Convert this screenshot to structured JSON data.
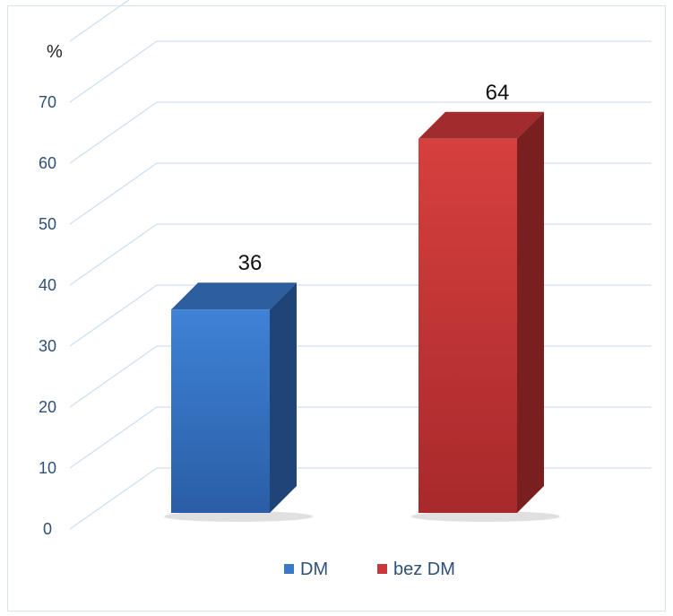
{
  "chart_data": {
    "type": "bar",
    "ylabel": "%",
    "categories": [
      "DM",
      "bez DM"
    ],
    "values": [
      36,
      64
    ],
    "data_labels": [
      "36",
      "64"
    ],
    "ylim": [
      0,
      80
    ],
    "yticks": [
      0,
      10,
      20,
      30,
      40,
      50,
      60,
      70
    ],
    "grid": true,
    "legend_position": "bottom",
    "series": [
      {
        "name": "DM",
        "value": 36,
        "color": "#3a78c9"
      },
      {
        "name": "bez DM",
        "value": 64,
        "color": "#c9383a"
      }
    ]
  }
}
